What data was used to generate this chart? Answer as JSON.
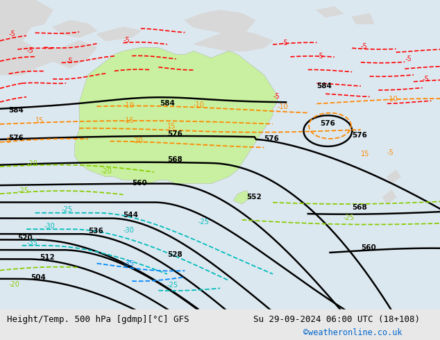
{
  "title_left": "Height/Temp. 500 hPa [gdmp][°C] GFS",
  "title_right": "Su 29-09-2024 06:00 UTC (18+108)",
  "credit": "©weatheronline.co.uk",
  "bg_color": "#e8e8e8",
  "fig_width": 6.34,
  "fig_height": 4.9,
  "dpi": 100,
  "ocean_color": "#dce8f0",
  "australia_color": "#c8f0a0",
  "land_color": "#d8d8d8",
  "title_fontsize": 9.0,
  "credit_fontsize": 8.5,
  "credit_color": "#0066cc"
}
